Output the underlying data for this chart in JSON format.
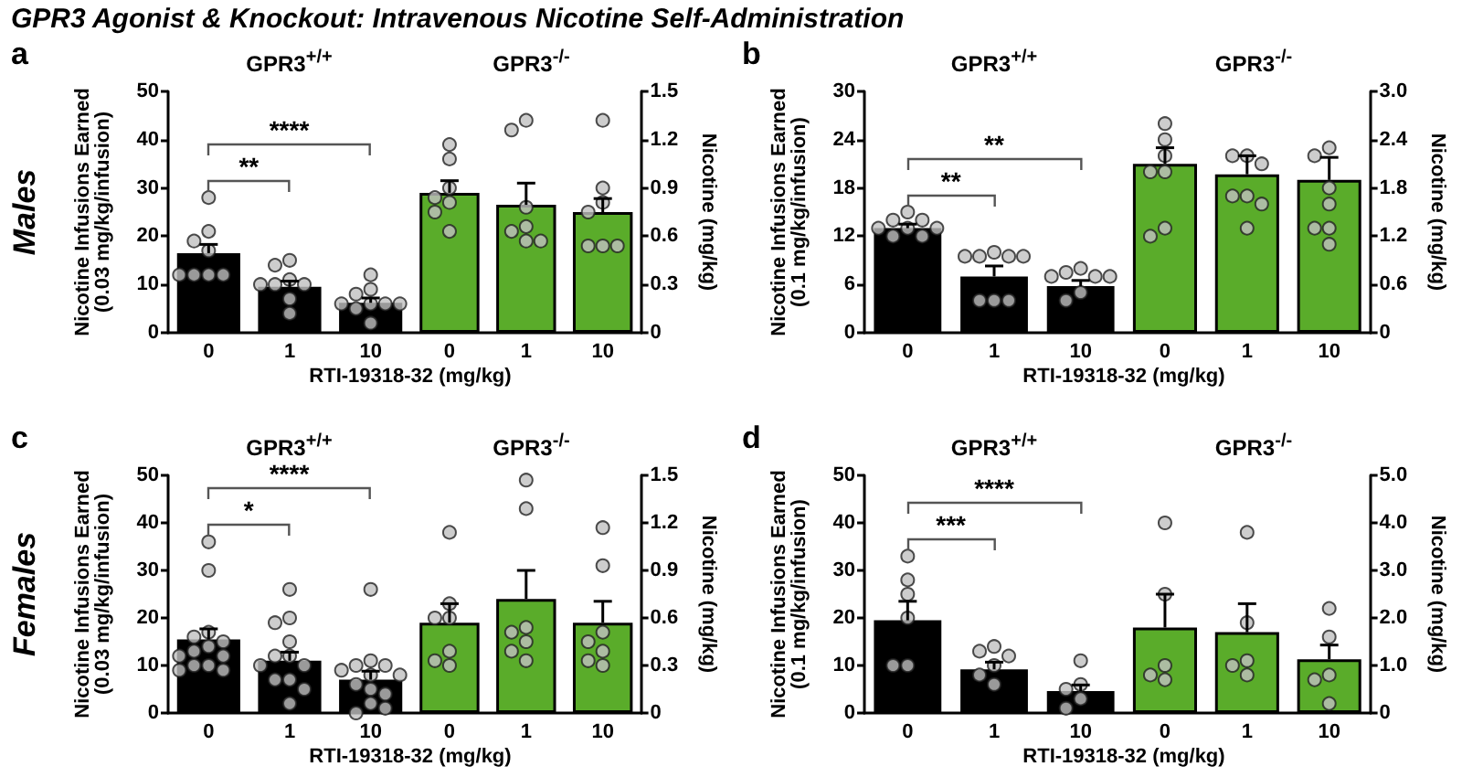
{
  "chart_data": [
    {
      "type": "other",
      "title": "GPR3 Agonist & Knockout: Intravenous Nicotine Self-Administration"
    },
    {
      "type": "other",
      "title": "Males"
    },
    {
      "type": "bar",
      "subtitle": "a",
      "title": "GPR3$^{+/+}$",
      "xlabel": "RTI-19318-32 (mg/kg)",
      "ylabel": "Nicotine Infusions Earned\n(0.03 mg/kg/infusion)",
      "categories": [
        "0",
        "1",
        "10"
      ],
      "ylim": [
        0,
        50
      ],
      "yticks": [
        0,
        10,
        20,
        30,
        40,
        50
      ],
      "marker": "circle",
      "annotations": [
        "**",
        "****"
      ],
      "series": [
        {
          "color": "#000000",
          "values": [
            16.5,
            9.5,
            6.2
          ],
          "errors": [
            1.8,
            1.2,
            1.0
          ]
        },
        {
          "type": "scatter",
          "color": "#c0c0c0",
          "x": [
            "0",
            "0",
            "0",
            "0",
            "0",
            "0",
            "0",
            "0",
            "1",
            "1",
            "1",
            "1",
            "1",
            "1",
            "1",
            "1",
            "10",
            "10",
            "10",
            "10",
            "10",
            "10",
            "10",
            "10",
            "10"
          ],
          "values": [
            28,
            21,
            19,
            17,
            12,
            12,
            12,
            12,
            15,
            14,
            11,
            10,
            10,
            10,
            7,
            4,
            12,
            9,
            8,
            6,
            6,
            6,
            6,
            5,
            2
          ]
        }
      ]
    },
    {
      "type": "bar",
      "title": "GPR3$^{-/-}$",
      "y2label": "Nicotine (mg/kg)",
      "categories": [
        "0",
        "1",
        "10"
      ],
      "ylim": [
        0,
        50
      ],
      "y2lim": [
        0,
        1.5
      ],
      "y2ticks": [
        0,
        0.3,
        0.6,
        0.9,
        1.2,
        1.5
      ],
      "marker": "circle",
      "series": [
        {
          "color": "#5aac2a",
          "values": [
            29,
            26.5,
            25
          ],
          "errors": [
            2.5,
            4.5,
            2.8
          ]
        },
        {
          "type": "scatter",
          "color": "#c0c0c0",
          "x": [
            "0",
            "0",
            "0",
            "0",
            "0",
            "0",
            "0",
            "1",
            "1",
            "1",
            "1",
            "1",
            "1",
            "1",
            "10",
            "10",
            "10",
            "10",
            "10",
            "10",
            "10"
          ],
          "values": [
            39,
            36,
            30,
            28,
            27,
            25,
            21,
            44,
            42,
            26,
            22,
            21,
            19,
            19,
            44,
            30,
            27,
            25,
            18,
            18,
            18
          ]
        }
      ]
    },
    {
      "type": "bar",
      "subtitle": "b",
      "title": "GPR3$^{+/+}$",
      "xlabel": "RTI-19318-32 (mg/kg)",
      "ylabel": "Nicotine Infusions Earned\n(0.1 mg/kg/infusion)",
      "categories": [
        "0",
        "1",
        "10"
      ],
      "ylim": [
        0,
        30
      ],
      "yticks": [
        0,
        6,
        12,
        18,
        24,
        30
      ],
      "marker": "circle",
      "annotations": [
        "**",
        "**"
      ],
      "series": [
        {
          "color": "#000000",
          "values": [
            13,
            7,
            5.8
          ],
          "errors": [
            0.5,
            1.3,
            0.7
          ]
        },
        {
          "type": "scatter",
          "color": "#c0c0c0",
          "x": [
            "0",
            "0",
            "0",
            "0",
            "0",
            "0",
            "0",
            "0",
            "1",
            "1",
            "1",
            "1",
            "1",
            "1",
            "1",
            "1",
            "10",
            "10",
            "10",
            "10",
            "10",
            "10",
            "10"
          ],
          "values": [
            15,
            14,
            14,
            13,
            13,
            13,
            12,
            12,
            10,
            9.5,
            9.5,
            9.5,
            9.5,
            4,
            4,
            4,
            8,
            7.5,
            7,
            7,
            7,
            5,
            4
          ]
        }
      ]
    },
    {
      "type": "bar",
      "title": "GPR3$^{-/-}$",
      "y2label": "Nicotine (mg/kg)",
      "categories": [
        "0",
        "1",
        "10"
      ],
      "ylim": [
        0,
        30
      ],
      "y2lim": [
        0,
        3
      ],
      "y2ticks": [
        0,
        0.6,
        1.2,
        1.8,
        2.4,
        {
          "value": 3,
          "label": "3.0"
        }
      ],
      "marker": "circle",
      "series": [
        {
          "color": "#5aac2a",
          "values": [
            21,
            19.7,
            19
          ],
          "errors": [
            2,
            2.3,
            2.8
          ]
        },
        {
          "type": "scatter",
          "color": "#c0c0c0",
          "x": [
            "0",
            "0",
            "0",
            "0",
            "0",
            "0",
            "0",
            "1",
            "1",
            "1",
            "1",
            "1",
            "1",
            "1",
            "10",
            "10",
            "10",
            "10",
            "10",
            "10",
            "10"
          ],
          "values": [
            26,
            24,
            22,
            20,
            20,
            13,
            12,
            22,
            22,
            21,
            17,
            17,
            16,
            13,
            23,
            22,
            18,
            16,
            13,
            13,
            11
          ]
        }
      ]
    },
    {
      "type": "other",
      "title": "Females"
    },
    {
      "type": "bar",
      "subtitle": "c",
      "title": "GPR3$^{+/+}$",
      "xlabel": "RTI-19318-32 (mg/kg)",
      "ylabel": "Nicotine Infusions Earned\n(0.03 mg/kg/infusion)",
      "categories": [
        "0",
        "1",
        "10"
      ],
      "ylim": [
        0,
        50
      ],
      "yticks": [
        0,
        10,
        20,
        30,
        40,
        50
      ],
      "marker": "circle",
      "annotations": [
        "*",
        "****"
      ],
      "series": [
        {
          "color": "#000000",
          "values": [
            15.5,
            11,
            7
          ],
          "errors": [
            2.2,
            1.8,
            1.8
          ]
        },
        {
          "type": "scatter",
          "color": "#c0c0c0",
          "x": [
            "0",
            "0",
            "0",
            "0",
            "0",
            "0",
            "0",
            "0",
            "0",
            "0",
            "0",
            "0",
            "0",
            "1",
            "1",
            "1",
            "1",
            "1",
            "1",
            "1",
            "1",
            "1",
            "1",
            "1",
            "1",
            "10",
            "10",
            "10",
            "10",
            "10",
            "10",
            "10",
            "10",
            "10",
            "10",
            "10",
            "10",
            "10"
          ],
          "values": [
            36,
            30,
            17,
            16,
            15,
            14,
            13,
            12,
            12,
            10,
            10,
            9,
            9,
            26,
            20,
            19,
            15,
            12,
            12,
            10,
            10,
            7,
            7,
            5,
            2,
            26,
            11,
            10,
            10,
            9,
            8,
            8,
            6,
            5,
            4,
            2,
            0,
            1
          ]
        }
      ]
    },
    {
      "type": "bar",
      "title": "GPR3$^{-/-}$",
      "y2label": "Nicotine (mg/kg)",
      "categories": [
        "0",
        "1",
        "10"
      ],
      "ylim": [
        0,
        50
      ],
      "y2lim": [
        0,
        1.5
      ],
      "y2ticks": [
        0,
        0.3,
        0.6,
        0.9,
        1.2,
        1.5
      ],
      "marker": "circle",
      "series": [
        {
          "color": "#5aac2a",
          "values": [
            19,
            24,
            19
          ],
          "errors": [
            4,
            6,
            4.5
          ]
        },
        {
          "type": "scatter",
          "color": "#c0c0c0",
          "x": [
            "0",
            "0",
            "0",
            "0",
            "0",
            "0",
            "0",
            "1",
            "1",
            "1",
            "1",
            "1",
            "1",
            "1",
            "10",
            "10",
            "10",
            "10",
            "10",
            "10",
            "10"
          ],
          "values": [
            38,
            23,
            20,
            20,
            13,
            10,
            11,
            49,
            43,
            18,
            17,
            15,
            13,
            11,
            39,
            31,
            17,
            15,
            13,
            10,
            11
          ]
        }
      ]
    },
    {
      "type": "bar",
      "subtitle": "d",
      "title": "GPR3$^{+/+}$",
      "xlabel": "RTI-19318-32 (mg/kg)",
      "ylabel": "Nicotine Infusions Earned\n(0.1 mg/kg/infusion)",
      "categories": [
        "0",
        "1",
        "10"
      ],
      "ylim": [
        0,
        50
      ],
      "yticks": [
        0,
        10,
        20,
        30,
        40,
        50
      ],
      "marker": "circle",
      "annotations": [
        "***",
        "****"
      ],
      "series": [
        {
          "color": "#000000",
          "values": [
            19.5,
            9.2,
            4.6
          ],
          "errors": [
            4,
            1.5,
            1.3
          ]
        },
        {
          "type": "scatter",
          "color": "#c0c0c0",
          "x": [
            "0",
            "0",
            "0",
            "0",
            "0",
            "0",
            "1",
            "1",
            "1",
            "1",
            "1",
            "1",
            "10",
            "10",
            "10",
            "10",
            "10"
          ],
          "values": [
            33,
            28,
            25,
            20,
            10,
            10,
            14,
            13,
            12,
            10,
            8,
            6,
            11,
            6,
            5,
            3,
            1
          ]
        }
      ]
    },
    {
      "type": "bar",
      "title": "GPR3$^{-/-}$",
      "y2label": "Nicotine (mg/kg)",
      "categories": [
        "0",
        "1",
        "10"
      ],
      "ylim": [
        0,
        50
      ],
      "y2lim": [
        0,
        5
      ],
      "y2ticks": [
        0,
        {
          "value": 1,
          "label": "1.0"
        },
        {
          "value": 2,
          "label": "2.0"
        },
        {
          "value": 3,
          "label": "3.0"
        },
        {
          "value": 4,
          "label": "4.0"
        },
        {
          "value": 5,
          "label": "5.0"
        }
      ],
      "marker": "circle",
      "series": [
        {
          "color": "#5aac2a",
          "values": [
            18,
            17,
            11.3
          ],
          "errors": [
            7,
            6,
            3
          ]
        },
        {
          "type": "scatter",
          "color": "#c0c0c0",
          "x": [
            "0",
            "0",
            "0",
            "0",
            "0",
            "1",
            "1",
            "1",
            "1",
            "1",
            "10",
            "10",
            "10",
            "10",
            "10"
          ],
          "values": [
            40,
            25,
            10,
            8,
            7,
            38,
            19,
            11,
            10,
            8,
            22,
            16,
            8,
            7,
            2
          ]
        }
      ]
    }
  ]
}
